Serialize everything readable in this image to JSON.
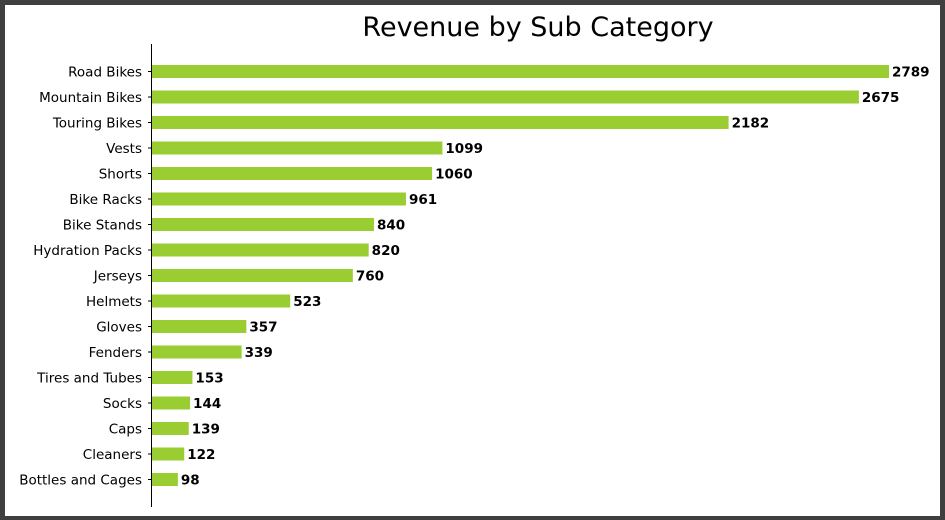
{
  "chart_data": {
    "type": "bar",
    "orientation": "horizontal",
    "title": "Revenue by Sub Category",
    "xlabel": "",
    "ylabel": "",
    "categories": [
      "Road Bikes",
      "Mountain Bikes",
      "Touring Bikes",
      "Vests",
      "Shorts",
      "Bike Racks",
      "Bike Stands",
      "Hydration Packs",
      "Jerseys",
      "Helmets",
      "Gloves",
      "Fenders",
      "Tires and Tubes",
      "Socks",
      "Caps",
      "Cleaners",
      "Bottles and Cages"
    ],
    "values": [
      2789,
      2675,
      2182,
      1099,
      1060,
      961,
      840,
      820,
      760,
      523,
      357,
      339,
      153,
      144,
      139,
      122,
      98
    ],
    "value_labels": [
      "2789",
      "2675",
      "2182",
      "1099",
      "1060",
      "961",
      "840",
      "820",
      "760",
      "523",
      "357",
      "339",
      "153",
      "144",
      "139",
      "122",
      "98"
    ],
    "xlim": [
      0,
      2789
    ],
    "grid": false,
    "x_axis_visible": false,
    "bar_color": "#9acd32"
  }
}
